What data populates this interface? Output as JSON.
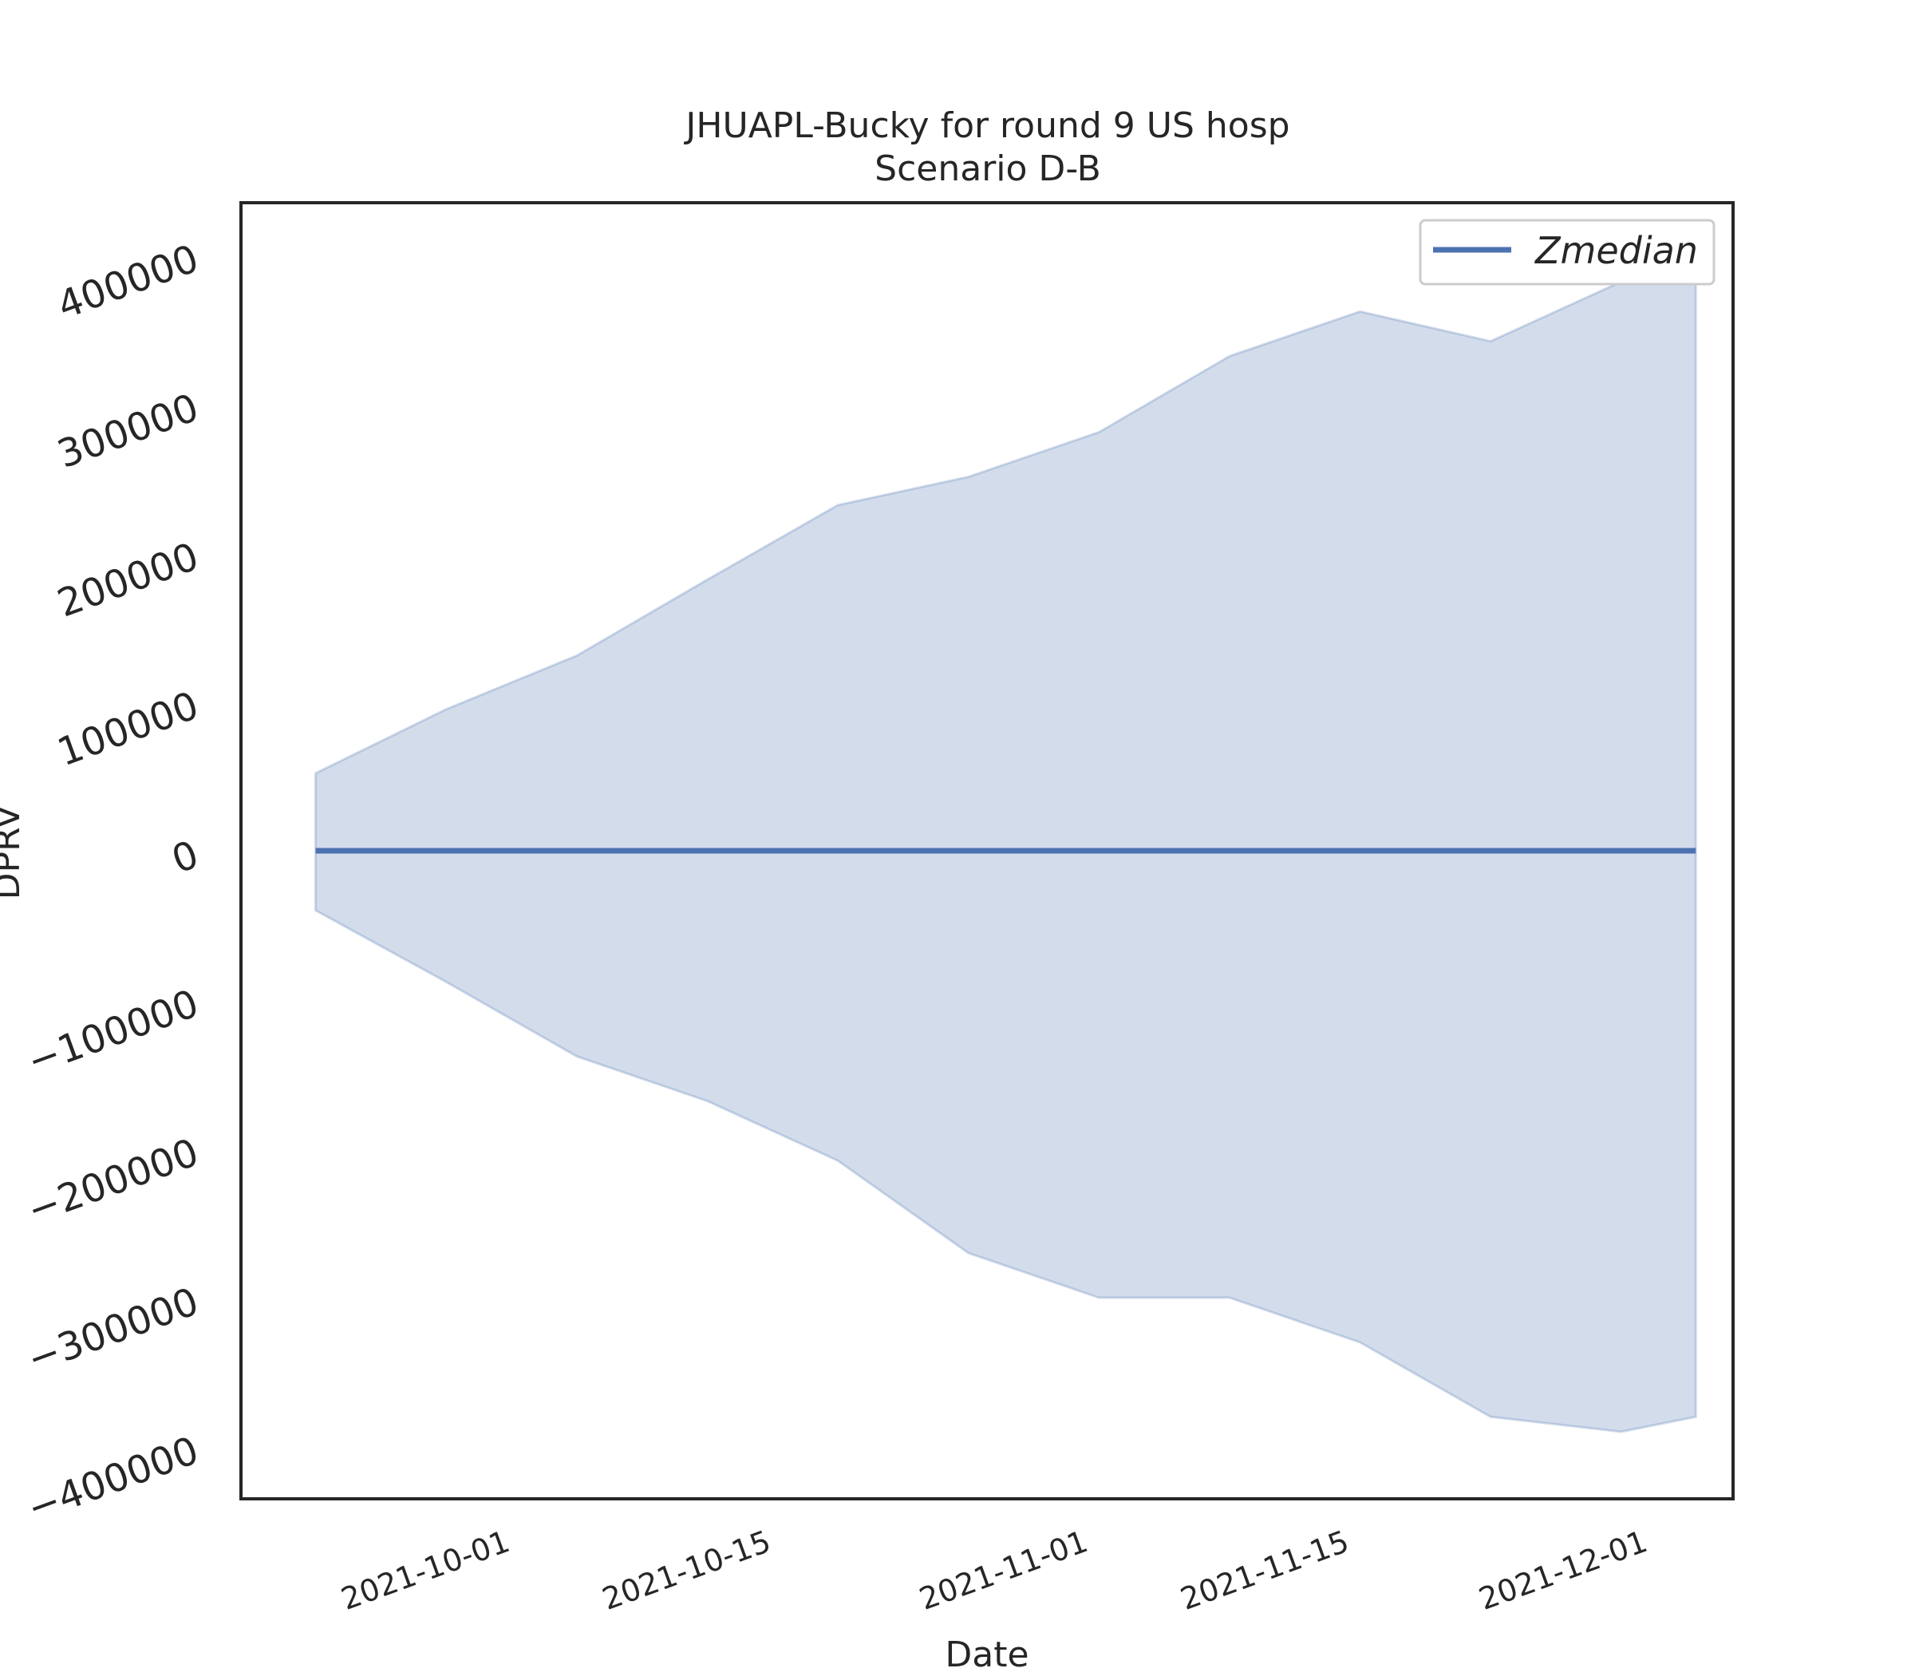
{
  "chart_data": {
    "type": "area",
    "title": "JHUAPL-Bucky for round 9 US hosp",
    "subtitle": "Scenario D-B",
    "xlabel": "Date",
    "ylabel": "DPRV",
    "ylim": [
      -435000,
      435000
    ],
    "xlim": [
      "2021-09-17",
      "2021-12-06"
    ],
    "yticks": [
      -400000,
      -300000,
      -200000,
      -100000,
      0,
      100000,
      200000,
      300000,
      400000
    ],
    "ytick_labels": [
      "−400000",
      "−300000",
      "−200000",
      "−100000",
      "0",
      "100000",
      "200000",
      "300000",
      "400000"
    ],
    "xticks": [
      "2021-10-01",
      "2021-10-15",
      "2021-11-01",
      "2021-11-15",
      "2021-12-01"
    ],
    "legend": {
      "position": "top-right",
      "entries": [
        "Zmedian"
      ]
    },
    "grid": false,
    "dates": [
      "2021-09-21",
      "2021-09-28",
      "2021-10-05",
      "2021-10-12",
      "2021-10-19",
      "2021-10-26",
      "2021-11-02",
      "2021-11-09",
      "2021-11-16",
      "2021-11-23",
      "2021-11-30",
      "2021-12-04"
    ],
    "series": [
      {
        "name": "Zmedian",
        "type": "line",
        "color": "#4c72b0",
        "values": [
          0,
          0,
          0,
          0,
          0,
          0,
          0,
          0,
          0,
          0,
          0,
          0
        ]
      },
      {
        "type": "band",
        "color": "#4c72b0",
        "upper": [
          52000,
          95000,
          131000,
          182000,
          232000,
          251000,
          281000,
          332000,
          362000,
          342000,
          382000,
          400000
        ],
        "lower": [
          -40000,
          -88000,
          -138000,
          -168000,
          -208000,
          -270000,
          -300000,
          -300000,
          -330000,
          -380000,
          -390000,
          -380000
        ]
      }
    ]
  }
}
